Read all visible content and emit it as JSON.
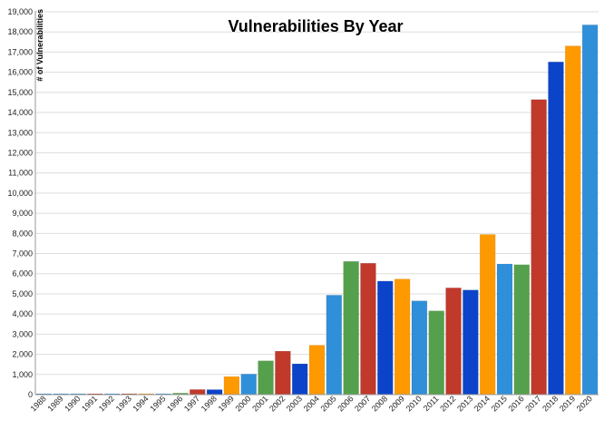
{
  "chart_data": {
    "type": "bar",
    "title": "Vulnerabilities By Year",
    "ylabel": "# of Vulnerabilities",
    "xlabel": "",
    "ylim": [
      0,
      19000
    ],
    "y_ticks": [
      "0",
      "1,000",
      "2,000",
      "3,000",
      "4,000",
      "5,000",
      "6,000",
      "7,000",
      "8,000",
      "9,000",
      "10,000",
      "11,000",
      "12,000",
      "13,000",
      "14,000",
      "15,000",
      "16,000",
      "17,000",
      "18,000",
      "19,000"
    ],
    "grid": true,
    "legend": "none",
    "categories": [
      "1988",
      "1989",
      "1990",
      "1991",
      "1992",
      "1993",
      "1994",
      "1995",
      "1996",
      "1997",
      "1998",
      "1999",
      "2000",
      "2001",
      "2002",
      "2003",
      "2004",
      "2005",
      "2006",
      "2007",
      "2008",
      "2009",
      "2010",
      "2011",
      "2012",
      "2013",
      "2014",
      "2015",
      "2016",
      "2017",
      "2018",
      "2019",
      "2020"
    ],
    "values": [
      2,
      3,
      11,
      15,
      13,
      13,
      25,
      25,
      75,
      252,
      246,
      894,
      1020,
      1677,
      2156,
      1527,
      2451,
      4935,
      6610,
      6520,
      5632,
      5736,
      4652,
      4155,
      5297,
      5191,
      7946,
      6484,
      6447,
      14643,
      16511,
      17305,
      18350
    ],
    "bar_colors": [
      "#2f8fd8",
      "#2f8fd8",
      "#2f8fd8",
      "#c0392b",
      "#2f8fd8",
      "#c0392b",
      "#ff9900",
      "#2f8fd8",
      "#55a04c",
      "#c0392b",
      "#0b44c8",
      "#ff9900",
      "#2f8fd8",
      "#55a04c",
      "#c0392b",
      "#0b44c8",
      "#ff9900",
      "#2f8fd8",
      "#55a04c",
      "#c0392b",
      "#0b44c8",
      "#ff9900",
      "#2f8fd8",
      "#55a04c",
      "#c0392b",
      "#0b44c8",
      "#ff9900",
      "#2f8fd8",
      "#55a04c",
      "#c0392b",
      "#0b44c8",
      "#ff9900",
      "#2f8fd8"
    ]
  }
}
